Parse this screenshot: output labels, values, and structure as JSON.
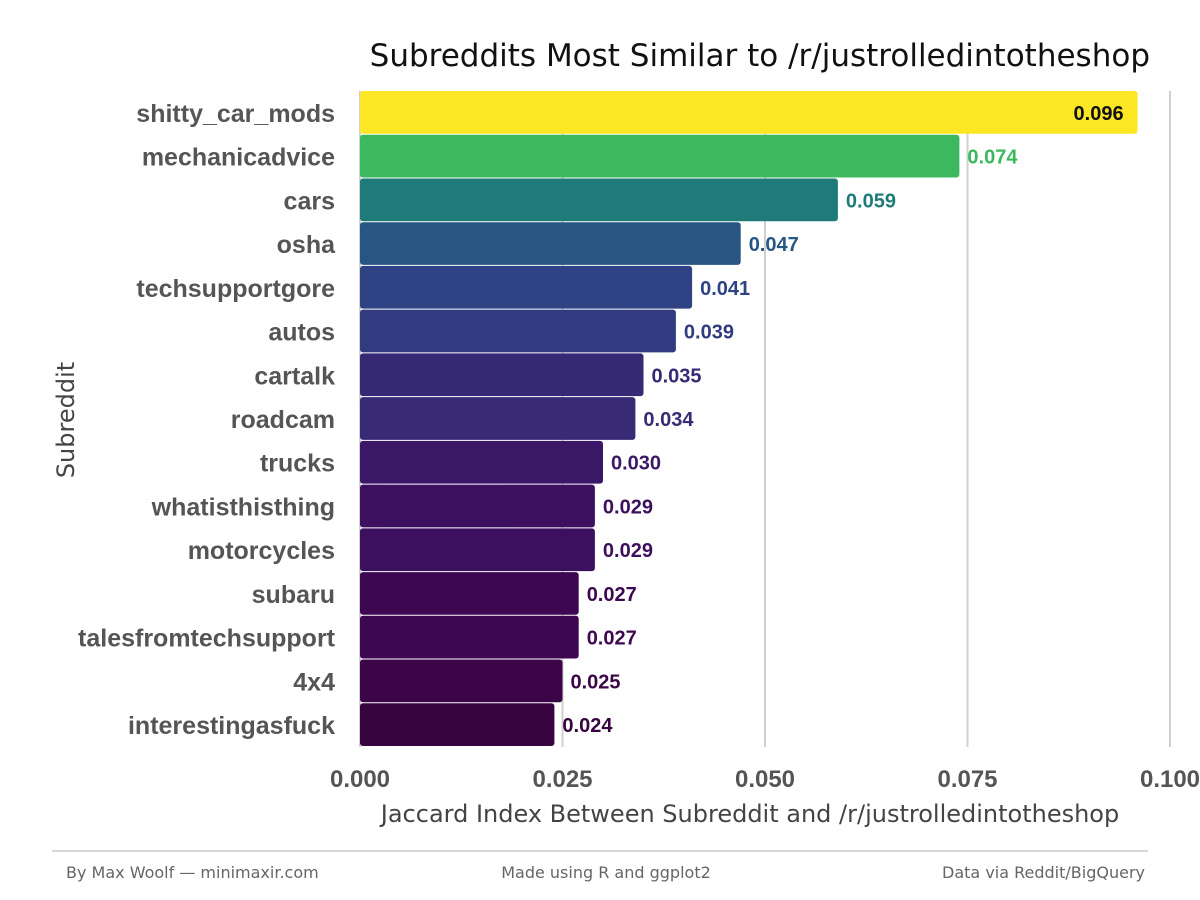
{
  "chart_data": {
    "type": "bar",
    "orientation": "horizontal",
    "title": "Subreddits Most Similar to /r/justrolledintotheshop",
    "xlabel": "Jaccard Index Between Subreddit and /r/justrolledintotheshop",
    "ylabel": "Subreddit",
    "xlim": [
      0,
      0.1
    ],
    "x_ticks": [
      "0.000",
      "0.025",
      "0.050",
      "0.075",
      "0.100"
    ],
    "x_tick_values": [
      0,
      0.025,
      0.05,
      0.075,
      0.1
    ],
    "grid": "vertical major",
    "categories": [
      "shitty_car_mods",
      "mechanicadvice",
      "cars",
      "osha",
      "techsupportgore",
      "autos",
      "cartalk",
      "roadcam",
      "trucks",
      "whatisthisthing",
      "motorcycles",
      "subaru",
      "talesfromtechsupport",
      "4x4",
      "interestingasfuck"
    ],
    "values": [
      0.096,
      0.074,
      0.059,
      0.047,
      0.041,
      0.039,
      0.035,
      0.034,
      0.03,
      0.029,
      0.029,
      0.027,
      0.027,
      0.025,
      0.024
    ],
    "value_labels": [
      "0.096",
      "0.074",
      "0.059",
      "0.047",
      "0.041",
      "0.039",
      "0.035",
      "0.034",
      "0.030",
      "0.029",
      "0.029",
      "0.027",
      "0.027",
      "0.025",
      "0.024"
    ],
    "colors": [
      "#fde725",
      "#3cb95f",
      "#1f7b7a",
      "#275683",
      "#2f4283",
      "#313c80",
      "#362a74",
      "#382a74",
      "#3b1867",
      "#3c0f5f",
      "#3c0f5f",
      "#3d0752",
      "#3d0752",
      "#3b0548",
      "#370440"
    ]
  },
  "footer": {
    "left": "By Max Woolf — minimaxir.com",
    "center": "Made using R and ggplot2",
    "right": "Data via Reddit/BigQuery"
  }
}
